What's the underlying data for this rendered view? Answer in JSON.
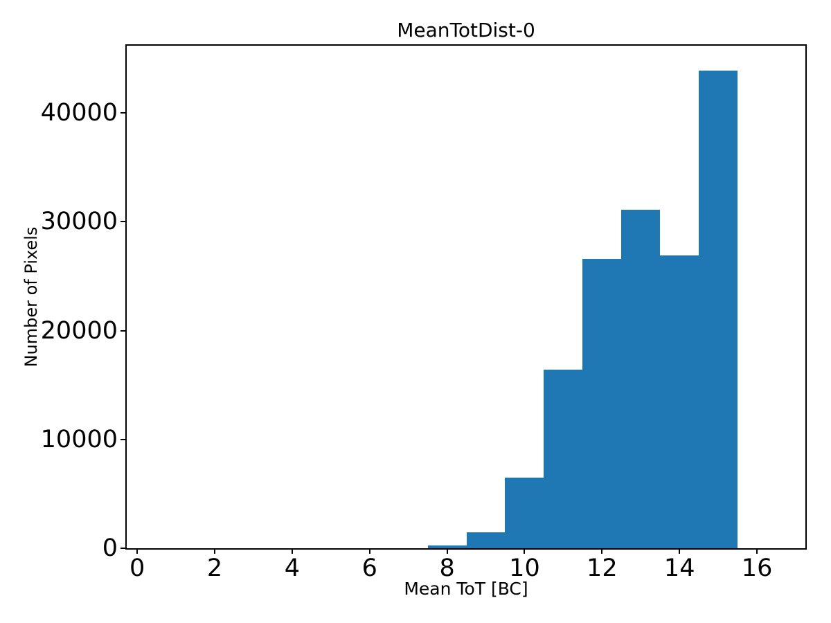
{
  "chart_data": {
    "type": "bar",
    "subtype": "histogram",
    "title": "MeanTotDist-0",
    "xlabel": "Mean ToT [BC]",
    "ylabel": "Number of Pixels",
    "bin_edges": [
      7.5,
      8.5,
      9.5,
      10.5,
      11.5,
      12.5,
      13.5,
      14.5,
      15.5
    ],
    "counts": [
      270,
      1450,
      6500,
      16400,
      26600,
      31100,
      26900,
      43900
    ],
    "xlim": [
      -0.27,
      17.25
    ],
    "ylim": [
      0,
      46170
    ],
    "xticks": [
      0,
      2,
      4,
      6,
      8,
      10,
      12,
      14,
      16
    ],
    "xtick_labels": [
      "0",
      "2",
      "4",
      "6",
      "8",
      "10",
      "12",
      "14",
      "16"
    ],
    "yticks": [
      0,
      10000,
      20000,
      30000,
      40000
    ],
    "ytick_labels": [
      "0",
      "10000",
      "20000",
      "30000",
      "40000"
    ],
    "bar_color": "#1f77b4",
    "axis_color": "#000000",
    "background_color": "#ffffff",
    "grid": false,
    "legend": null
  }
}
